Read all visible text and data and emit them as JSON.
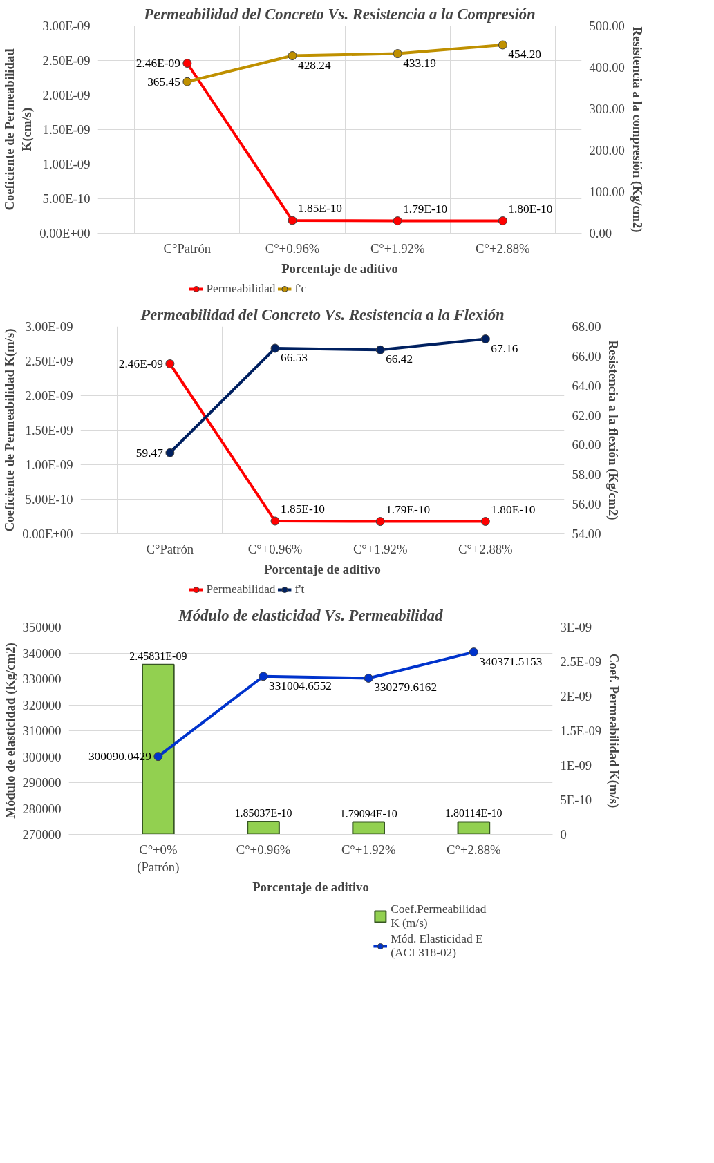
{
  "chart_data": [
    {
      "type": "line",
      "title": "Permeabilidad del Concreto Vs. Resistencia a la Compresión",
      "xlabel": "Porcentaje de aditivo",
      "ylabel": "Coeficiente de Permeabilidad\nK(cm/s)",
      "y2label": "Resistencia a la compresión (Kg/cm2)",
      "categories": [
        "C°Patrón",
        "C°+0.96%",
        "C°+1.92%",
        "C°+2.88%"
      ],
      "series": [
        {
          "name": "Permeabilidad",
          "color": "#ff0000",
          "values": [
            2.46e-09,
            1.85e-10,
            1.79e-10,
            1.8e-10
          ],
          "value_labels": [
            "2.46E-09",
            "1.85E-10",
            "1.79E-10",
            "1.80E-10"
          ]
        },
        {
          "name": "f'c",
          "color": "#bf9000",
          "axis": "y2",
          "values": [
            365.45,
            428.24,
            433.19,
            454.2
          ],
          "value_labels": [
            "365.45",
            "428.24",
            "433.19",
            "454.20"
          ]
        }
      ],
      "ylim": [
        0,
        3e-09
      ],
      "yticks": [
        {
          "value": 0,
          "label": "0.00E+00"
        },
        {
          "value": 5e-10,
          "label": "5.00E-10"
        },
        {
          "value": 1e-09,
          "label": "1.00E-09"
        },
        {
          "value": 1.5e-09,
          "label": "1.50E-09"
        },
        {
          "value": 2e-09,
          "label": "2.00E-09"
        },
        {
          "value": 2.5e-09,
          "label": "2.50E-09"
        },
        {
          "value": 3e-09,
          "label": "3.00E-09"
        }
      ],
      "y2lim": [
        0,
        500
      ],
      "y2ticks": [
        {
          "value": 0,
          "label": "0.00"
        },
        {
          "value": 100,
          "label": "100.00"
        },
        {
          "value": 200,
          "label": "200.00"
        },
        {
          "value": 300,
          "label": "300.00"
        },
        {
          "value": 400,
          "label": "400.00"
        },
        {
          "value": 500,
          "label": "500.00"
        }
      ],
      "grid": true,
      "legend": "bottom",
      "marker": "circle",
      "line_style": "solid"
    },
    {
      "type": "line",
      "title": "Permeabilidad del Concreto Vs. Resistencia a la Flexión",
      "xlabel": "Porcentaje de aditivo",
      "ylabel": "Coeficiente de Permeabilidad K(m/s)",
      "y2label": "Resistencia a la flexión (Kg/cm2)",
      "categories": [
        "C°Patrón",
        "C°+0.96%",
        "C°+1.92%",
        "C°+2.88%"
      ],
      "series": [
        {
          "name": "Permeabilidad",
          "color": "#ff0000",
          "values": [
            2.46e-09,
            1.85e-10,
            1.79e-10,
            1.8e-10
          ],
          "value_labels": [
            "2.46E-09",
            "1.85E-10",
            "1.79E-10",
            "1.80E-10"
          ]
        },
        {
          "name": "f't",
          "color": "#002060",
          "axis": "y2",
          "values": [
            59.47,
            66.53,
            66.42,
            67.16
          ],
          "value_labels": [
            "59.47",
            "66.53",
            "66.42",
            "67.16"
          ]
        }
      ],
      "ylim": [
        0,
        3e-09
      ],
      "yticks": [
        {
          "value": 0,
          "label": "0.00E+00"
        },
        {
          "value": 5e-10,
          "label": "5.00E-10"
        },
        {
          "value": 1e-09,
          "label": "1.00E-09"
        },
        {
          "value": 1.5e-09,
          "label": "1.50E-09"
        },
        {
          "value": 2e-09,
          "label": "2.00E-09"
        },
        {
          "value": 2.5e-09,
          "label": "2.50E-09"
        },
        {
          "value": 3e-09,
          "label": "3.00E-09"
        }
      ],
      "y2lim": [
        54,
        68
      ],
      "y2ticks": [
        {
          "value": 54,
          "label": "54.00"
        },
        {
          "value": 56,
          "label": "56.00"
        },
        {
          "value": 58,
          "label": "58.00"
        },
        {
          "value": 60,
          "label": "60.00"
        },
        {
          "value": 62,
          "label": "62.00"
        },
        {
          "value": 64,
          "label": "64.00"
        },
        {
          "value": 66,
          "label": "66.00"
        },
        {
          "value": 68,
          "label": "68.00"
        }
      ],
      "grid": true,
      "legend": "bottom",
      "marker": "circle",
      "line_style": "solid"
    },
    {
      "type": "line",
      "title": "Módulo de elasticidad Vs. Permeabilidad",
      "xlabel": "Porcentaje de aditivo",
      "ylabel": "Módulo de elasticidad (Kg/cm2)",
      "y2label": "Coef. Permeabilidad K(m/s)",
      "categories": [
        "C°+0%\n(Patrón)",
        "C°+0.96%",
        "C°+1.92%",
        "C°+2.88%"
      ],
      "series": [
        {
          "name": "Coef.Permeabilidad\nK (m/s)",
          "type": "bar",
          "color": "#92d050",
          "axis": "y2",
          "values": [
            2.45831e-09,
            1.85037e-10,
            1.79094e-10,
            1.80114e-10
          ],
          "value_labels": [
            "2.45831E-09",
            "1.85037E-10",
            "1.79094E-10",
            "1.80114E-10"
          ]
        },
        {
          "name": "Mód. Elasticidad E\n(ACI 318-02)",
          "color": "#0033cc",
          "values": [
            300090.0429,
            331004.6552,
            330279.6162,
            340371.5153
          ],
          "value_labels": [
            "300090.0429",
            "331004.6552",
            "330279.6162",
            "340371.5153"
          ]
        }
      ],
      "ylim": [
        270000,
        350000
      ],
      "yticks": [
        {
          "value": 270000,
          "label": "270000"
        },
        {
          "value": 280000,
          "label": "280000"
        },
        {
          "value": 290000,
          "label": "290000"
        },
        {
          "value": 300000,
          "label": "300000"
        },
        {
          "value": 310000,
          "label": "310000"
        },
        {
          "value": 320000,
          "label": "320000"
        },
        {
          "value": 330000,
          "label": "330000"
        },
        {
          "value": 340000,
          "label": "340000"
        },
        {
          "value": 350000,
          "label": "350000"
        }
      ],
      "y2lim": [
        0,
        3e-09
      ],
      "y2ticks": [
        {
          "value": 0,
          "label": "0"
        },
        {
          "value": 5e-10,
          "label": "5E-10"
        },
        {
          "value": 1e-09,
          "label": "1E-09"
        },
        {
          "value": 1.5e-09,
          "label": "1.5E-09"
        },
        {
          "value": 2e-09,
          "label": "2E-09"
        },
        {
          "value": 2.5e-09,
          "label": "2.5E-09"
        },
        {
          "value": 3e-09,
          "label": "3E-09"
        }
      ],
      "grid": "y",
      "legend": "bottom right",
      "marker": "circle",
      "line_style": "solid"
    }
  ]
}
